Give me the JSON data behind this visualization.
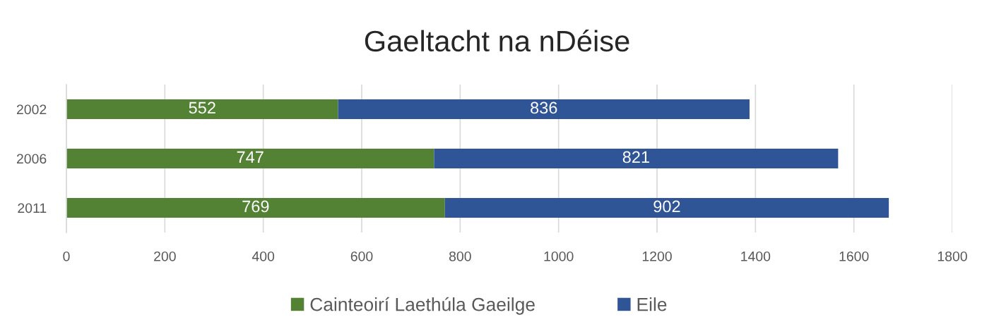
{
  "chart_data": {
    "type": "bar",
    "title": "Gaeltacht na nDéise",
    "orientation": "horizontal",
    "stacked": true,
    "categories": [
      "2002",
      "2006",
      "2011"
    ],
    "series": [
      {
        "name": "Cainteoirí Laethúla Gaeilge",
        "color": "#548235",
        "values": [
          552,
          747,
          769
        ]
      },
      {
        "name": "Eile",
        "color": "#2f5597",
        "values": [
          836,
          821,
          902
        ]
      }
    ],
    "xlim": [
      0,
      1800
    ],
    "xticks": [
      0,
      200,
      400,
      600,
      800,
      1000,
      1200,
      1400,
      1600,
      1800
    ],
    "grid": "x",
    "legend": "bottom",
    "data_labels": true
  }
}
